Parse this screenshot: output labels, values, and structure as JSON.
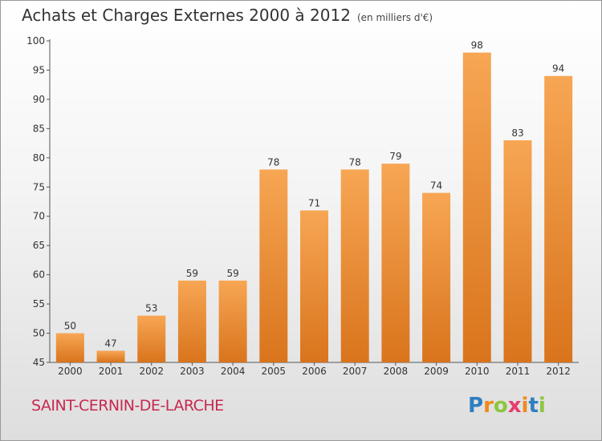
{
  "title": "Achats et Charges Externes 2000 à 2012",
  "subtitle": "(en milliers d'€)",
  "commune": "SAINT-CERNIN-DE-LARCHE",
  "logo": {
    "letters": [
      "P",
      "r",
      "o",
      "x",
      "i",
      "t",
      "i"
    ],
    "colors": [
      "#2d7fc1",
      "#f08a1c",
      "#8cc63f",
      "#e63c6c",
      "#f08a1c",
      "#2d7fc1",
      "#8cc63f"
    ]
  },
  "colors": {
    "bar_top": "#f7a654",
    "bar_bottom": "#d9741c",
    "axis": "#555555"
  },
  "chart_data": {
    "type": "bar",
    "categories": [
      "2000",
      "2001",
      "2002",
      "2003",
      "2004",
      "2005",
      "2006",
      "2007",
      "2008",
      "2009",
      "2010",
      "2011",
      "2012"
    ],
    "values": [
      50,
      47,
      53,
      59,
      59,
      78,
      71,
      78,
      79,
      74,
      98,
      83,
      94
    ],
    "ylim": [
      45,
      100
    ],
    "yticks": [
      45,
      50,
      55,
      60,
      65,
      70,
      75,
      80,
      85,
      90,
      95,
      100
    ],
    "grid": false,
    "value_labels": true
  }
}
